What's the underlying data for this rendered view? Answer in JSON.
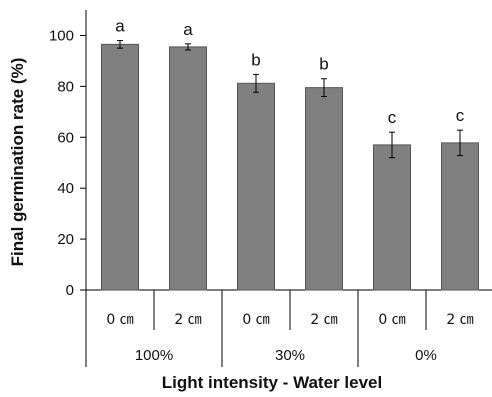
{
  "chart_data": {
    "type": "bar",
    "title": "",
    "ylabel": "Final germination rate (%)",
    "xlabel": "Light intensity - Water level",
    "ylim": [
      0,
      110
    ],
    "yticks": [
      0,
      20,
      40,
      60,
      80,
      100
    ],
    "grid": false,
    "categories": [
      "0 ㎝",
      "2 ㎝",
      "0 ㎝",
      "2 ㎝",
      "0 ㎝",
      "2 ㎝"
    ],
    "groups": [
      {
        "label": "100%",
        "span": [
          0,
          1
        ]
      },
      {
        "label": "30%",
        "span": [
          2,
          3
        ]
      },
      {
        "label": "0%",
        "span": [
          4,
          5
        ]
      }
    ],
    "series": [
      {
        "values": [
          96.5,
          95.5,
          81.2,
          79.5,
          57.0,
          57.8
        ],
        "errors": [
          1.5,
          1.2,
          3.5,
          3.5,
          5.0,
          5.0
        ],
        "significance": [
          "a",
          "a",
          "b",
          "b",
          "c",
          "c"
        ],
        "color": "#808080"
      }
    ]
  }
}
